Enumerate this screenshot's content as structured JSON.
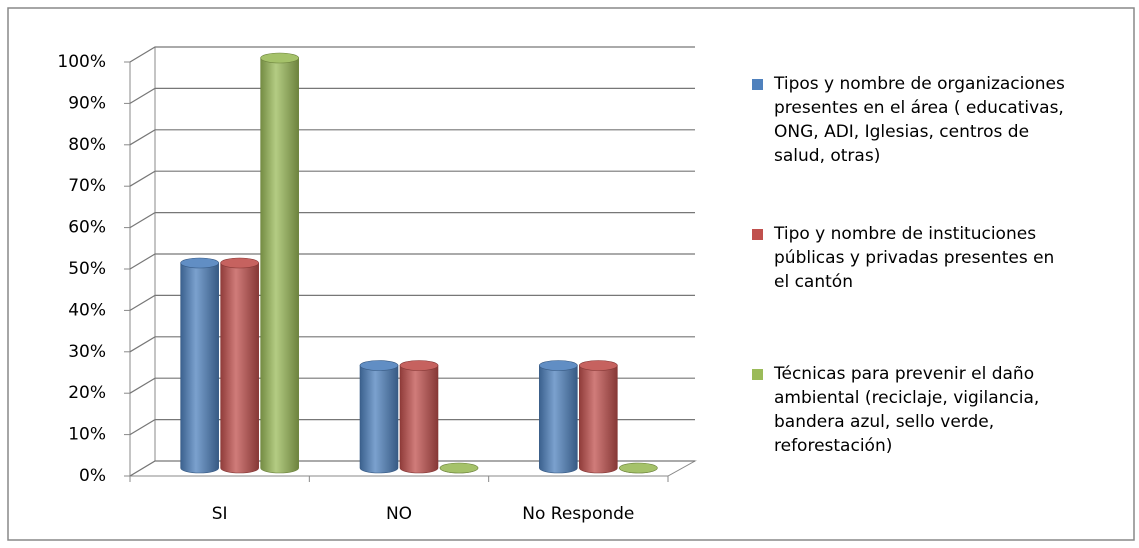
{
  "chart_data": {
    "type": "bar3d",
    "categories": [
      "SI",
      "NO",
      "No Responde"
    ],
    "series": [
      {
        "name": "Tipos y nombre de organizaciones presentes  en el área (   educativas, ONG, ADI, Iglesias, centros de salud, otras)",
        "color": "#4f81bd",
        "values": [
          50,
          25,
          25
        ]
      },
      {
        "name": "Tipo y nombre de instituciones públicas y privadas presentes en el cantón",
        "color": "#c0504d",
        "values": [
          50,
          25,
          25
        ]
      },
      {
        "name": "Técnicas para prevenir el daño ambiental (reciclaje, vigilancia, bandera azul, sello verde, reforestación)",
        "color": "#9bbb59",
        "values": [
          100,
          0,
          0
        ]
      }
    ],
    "ylim": [
      0,
      100
    ],
    "yticks": [
      {
        "value": 0,
        "label": "0%"
      },
      {
        "value": 10,
        "label": "10%"
      },
      {
        "value": 20,
        "label": "20%"
      },
      {
        "value": 30,
        "label": "30%"
      },
      {
        "value": 40,
        "label": "40%"
      },
      {
        "value": 50,
        "label": "50%"
      },
      {
        "value": 60,
        "label": "60%"
      },
      {
        "value": 70,
        "label": "70%"
      },
      {
        "value": 80,
        "label": "80%"
      },
      {
        "value": 90,
        "label": "90%"
      },
      {
        "value": 100,
        "label": "100%"
      }
    ],
    "grid": true
  }
}
